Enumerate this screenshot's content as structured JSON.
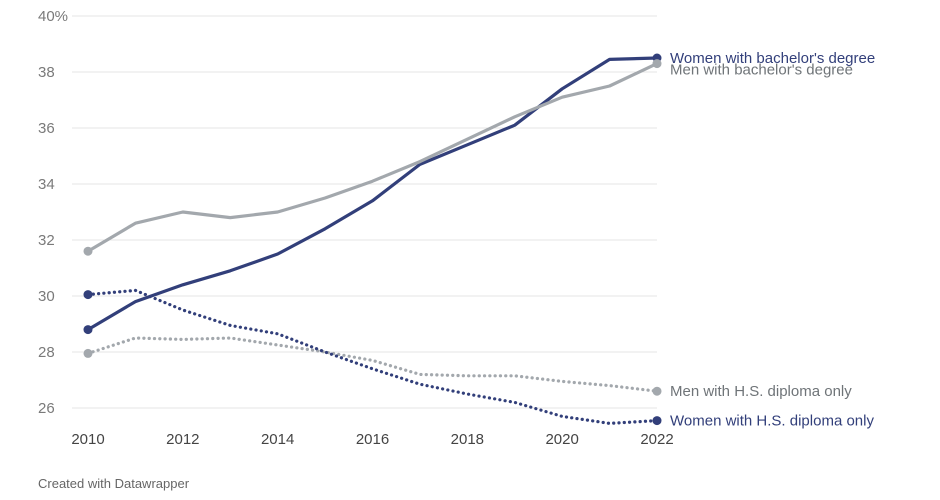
{
  "colors": {
    "women": "#323f7a",
    "men": "#a3a8ad",
    "grid": "#e6e6e6",
    "tick_y": "#7a7a7a",
    "tick_x": "#444444"
  },
  "footer": "Created with Datawrapper",
  "chart_data": {
    "type": "line",
    "title": "",
    "xlabel": "",
    "ylabel": "",
    "x": [
      2010,
      2011,
      2012,
      2013,
      2014,
      2015,
      2016,
      2017,
      2018,
      2019,
      2020,
      2021,
      2022
    ],
    "xlim": [
      2010,
      2022
    ],
    "ylim": [
      25.5,
      40
    ],
    "y_ticks": [
      26,
      28,
      30,
      32,
      34,
      36,
      38,
      40
    ],
    "y_tick_labels": [
      "26",
      "28",
      "30",
      "32",
      "34",
      "36",
      "38",
      "40%"
    ],
    "x_ticks": [
      2010,
      2012,
      2014,
      2016,
      2018,
      2020,
      2022
    ],
    "x_tick_labels": [
      "2010",
      "2012",
      "2014",
      "2016",
      "2018",
      "2020",
      "2022"
    ],
    "grid": true,
    "legend": "direct labels at line ends",
    "series": [
      {
        "name": "Women with bachelor's degree",
        "color": "#323f7a",
        "style": "solid",
        "values": [
          28.8,
          29.8,
          30.4,
          30.9,
          31.5,
          32.4,
          33.4,
          34.7,
          35.4,
          36.1,
          37.4,
          38.45,
          38.5
        ]
      },
      {
        "name": "Men with bachelor's degree",
        "color": "#a3a8ad",
        "style": "solid",
        "values": [
          31.6,
          32.6,
          33.0,
          32.8,
          33.0,
          33.5,
          34.1,
          34.8,
          35.6,
          36.4,
          37.1,
          37.5,
          38.3
        ]
      },
      {
        "name": "Men with H.S. diploma only",
        "color": "#a3a8ad",
        "style": "dotted",
        "values": [
          27.95,
          28.5,
          28.45,
          28.5,
          28.25,
          28.0,
          27.7,
          27.2,
          27.15,
          27.15,
          26.95,
          26.8,
          26.6
        ]
      },
      {
        "name": "Women with H.S. diploma only",
        "color": "#323f7a",
        "style": "dotted",
        "values": [
          30.05,
          30.2,
          29.5,
          28.95,
          28.65,
          28.0,
          27.4,
          26.85,
          26.5,
          26.2,
          25.7,
          25.45,
          25.55
        ]
      }
    ]
  }
}
